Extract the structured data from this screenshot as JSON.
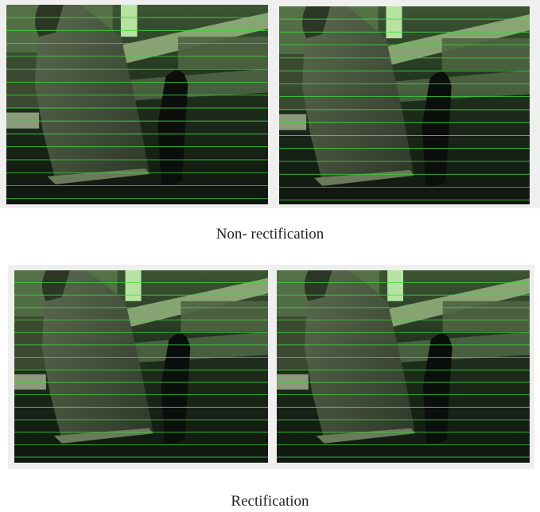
{
  "figure": {
    "captions": [
      "Non- rectification",
      "Rectification"
    ]
  }
}
